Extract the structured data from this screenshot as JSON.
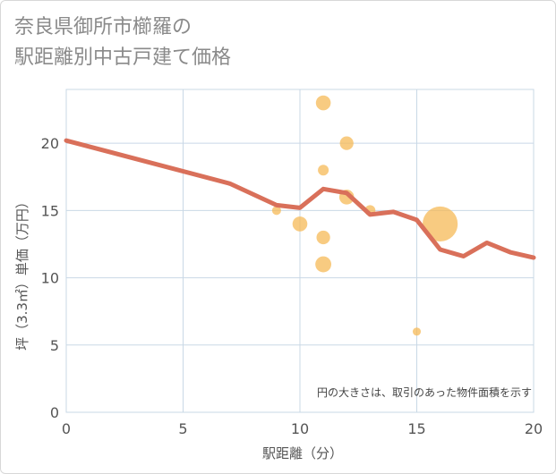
{
  "chart_data": {
    "type": "scatter",
    "title_lines": [
      "奈良県御所市櫛羅の",
      "駅距離別中古戸建て価格"
    ],
    "xlabel": "駅距離（分）",
    "ylabel": "坪（3.3㎡）単価（万円）",
    "xlim": [
      0,
      20
    ],
    "ylim": [
      0,
      24
    ],
    "xticks": [
      0,
      5,
      10,
      15,
      20
    ],
    "yticks": [
      0,
      5,
      10,
      15,
      20
    ],
    "grid": true,
    "note": "円の大きさは、取引のあった物件面積を示す",
    "colors": {
      "bubble": "#f5b957",
      "line": "#d9705a",
      "grid": "#c9d8e6"
    },
    "scatter": [
      {
        "x": 9,
        "y": 15,
        "size": 1
      },
      {
        "x": 10,
        "y": 14,
        "size": 3
      },
      {
        "x": 11,
        "y": 23,
        "size": 3
      },
      {
        "x": 11,
        "y": 18,
        "size": 1.5
      },
      {
        "x": 11,
        "y": 13,
        "size": 2.5
      },
      {
        "x": 11,
        "y": 11,
        "size": 3.5
      },
      {
        "x": 12,
        "y": 20,
        "size": 2.5
      },
      {
        "x": 12,
        "y": 16,
        "size": 3
      },
      {
        "x": 13,
        "y": 15,
        "size": 1.5
      },
      {
        "x": 15,
        "y": 6,
        "size": 0.8
      },
      {
        "x": 16,
        "y": 14,
        "size": 18
      }
    ],
    "line": {
      "name": "trend",
      "x": [
        0,
        7,
        9,
        10,
        11,
        12,
        13,
        14,
        15,
        16,
        17,
        18,
        19,
        20
      ],
      "y": [
        20.2,
        17.0,
        15.4,
        15.2,
        16.6,
        16.3,
        14.7,
        14.9,
        14.3,
        12.1,
        11.6,
        12.6,
        11.9,
        11.5
      ]
    }
  }
}
